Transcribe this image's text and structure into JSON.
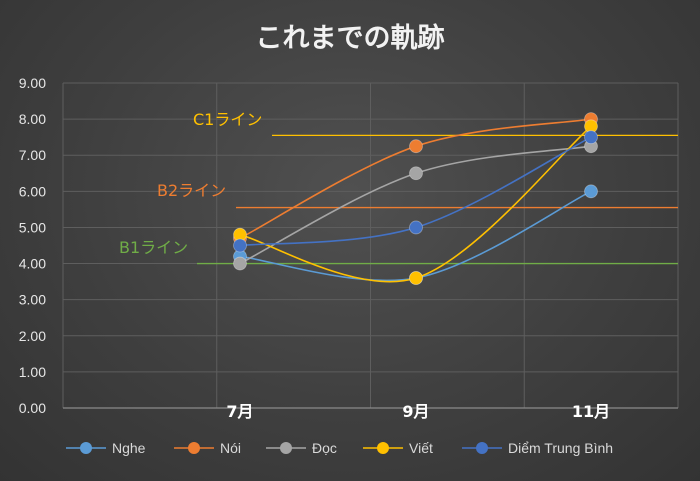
{
  "chart_data": {
    "type": "line",
    "title": "これまでの軌跡",
    "categories": [
      "7月",
      "9月",
      "11月"
    ],
    "ylim": [
      0,
      9
    ],
    "yticks": [
      "0.00",
      "1.00",
      "2.00",
      "3.00",
      "4.00",
      "5.00",
      "6.00",
      "7.00",
      "8.00",
      "9.00"
    ],
    "grid": true,
    "legend_position": "bottom",
    "series": [
      {
        "name": "Nghe",
        "color": "#5b9bd5",
        "values": [
          4.2,
          3.6,
          6.0
        ]
      },
      {
        "name": "Nói",
        "color": "#ed7d31",
        "values": [
          4.7,
          7.25,
          8.0
        ]
      },
      {
        "name": "Đọc",
        "color": "#a5a5a5",
        "values": [
          4.0,
          6.5,
          7.25
        ]
      },
      {
        "name": "Viết",
        "color": "#ffc000",
        "values": [
          4.8,
          3.6,
          7.8
        ]
      },
      {
        "name": "Diểm Trung Bình",
        "color": "#4472c4",
        "values": [
          4.5,
          5.0,
          7.5
        ]
      }
    ],
    "reference_lines": [
      {
        "label": "C1ライン",
        "value": 7.55,
        "color": "#ffc000"
      },
      {
        "label": "B2ライン",
        "value": 5.55,
        "color": "#ed7d31"
      },
      {
        "label": "B1ライン",
        "value": 4.0,
        "color": "#70ad47"
      }
    ]
  }
}
